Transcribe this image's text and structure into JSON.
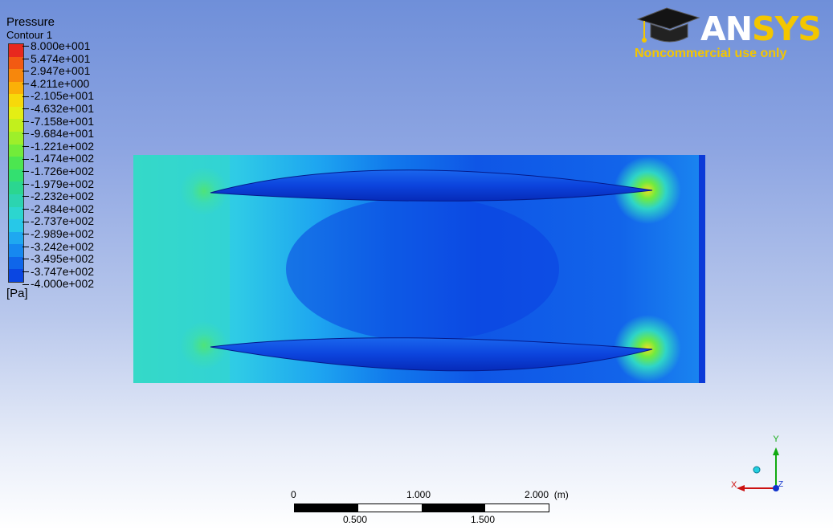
{
  "legend": {
    "title": "Pressure",
    "subtitle": "Contour 1",
    "unit": "[Pa]",
    "ticks": [
      "8.000e+001",
      "5.474e+001",
      "2.947e+001",
      "4.211e+000",
      "-2.105e+001",
      "-4.632e+001",
      "-7.158e+001",
      "-9.684e+001",
      "-1.221e+002",
      "-1.474e+002",
      "-1.726e+002",
      "-1.979e+002",
      "-2.232e+002",
      "-2.484e+002",
      "-2.737e+002",
      "-2.989e+002",
      "-3.242e+002",
      "-3.495e+002",
      "-3.747e+002",
      "-4.000e+002"
    ],
    "colors": [
      "#e8281e",
      "#f25a12",
      "#f7870c",
      "#fbb007",
      "#f7d90a",
      "#e4ee14",
      "#c2f01c",
      "#9eef2a",
      "#72ec3a",
      "#4ce650",
      "#33e070",
      "#2bd690",
      "#2cd4b0",
      "#2cd6cf",
      "#27c8e8",
      "#1fa8f0",
      "#1688f0",
      "#0f66ea",
      "#0a46e2",
      "#0628d6"
    ]
  },
  "logo": {
    "brand_prefix": "AN",
    "brand_suffix": "SYS",
    "tagline": "Noncommercial use only"
  },
  "scalebar": {
    "top_labels": [
      "0",
      "1.000",
      "2.000  (m)"
    ],
    "bottom_labels": [
      "0.500",
      "1.500"
    ]
  },
  "axes": {
    "x": "X",
    "y": "Y",
    "z": "Z",
    "colors": {
      "x": "#cc1111",
      "y": "#11aa11",
      "z": "#1133cc"
    }
  }
}
